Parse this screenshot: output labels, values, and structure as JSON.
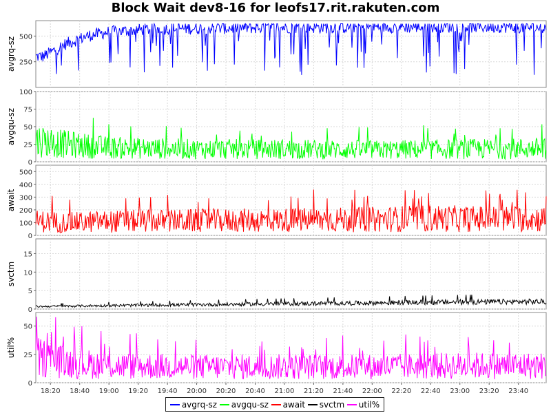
{
  "chart_data": {
    "type": "line",
    "title": "Block Wait dev8-16 for leofs17.rit.rakuten.com",
    "x_tick_labels": [
      "18:20",
      "18:40",
      "19:00",
      "19:20",
      "19:40",
      "20:00",
      "20:20",
      "20:40",
      "21:00",
      "21:20",
      "21:40",
      "22:00",
      "22:20",
      "22:40",
      "23:00",
      "23:20",
      "23:40"
    ],
    "x_range": [
      "18:10",
      "23:59"
    ],
    "grid": true,
    "legend_position": "bottom",
    "panels": [
      {
        "ylabel": "avgrq-sz",
        "series": "avgrq-sz",
        "color": "#0000ff",
        "ylim": [
          0,
          650
        ],
        "ticks": [
          250,
          500
        ],
        "samples": {
          "x": [
            "18:15",
            "18:30",
            "18:45",
            "19:00",
            "19:30",
            "20:00",
            "20:30",
            "21:00",
            "21:30",
            "22:00",
            "22:30",
            "23:00",
            "23:30",
            "23:59"
          ],
          "y": [
            300,
            420,
            500,
            540,
            570,
            575,
            580,
            585,
            585,
            590,
            590,
            590,
            590,
            580
          ]
        }
      },
      {
        "ylabel": "avgqu-sz",
        "series": "avgqu-sz",
        "color": "#00ff00",
        "ylim": [
          0,
          100
        ],
        "ticks": [
          0,
          25,
          50,
          75,
          100
        ],
        "samples": {
          "x": [
            "18:15",
            "18:30",
            "19:00",
            "20:00",
            "21:00",
            "22:00",
            "23:00",
            "23:59"
          ],
          "y": [
            30,
            25,
            20,
            18,
            18,
            17,
            18,
            19
          ]
        }
      },
      {
        "ylabel": "await",
        "series": "await",
        "color": "#ff0000",
        "ylim": [
          0,
          550
        ],
        "ticks": [
          0,
          100,
          200,
          300,
          400,
          500
        ],
        "samples": {
          "x": [
            "18:15",
            "18:30",
            "19:00",
            "20:00",
            "21:00",
            "22:00",
            "22:40",
            "23:00",
            "23:59"
          ],
          "y": [
            110,
            100,
            110,
            115,
            120,
            125,
            135,
            130,
            130
          ]
        }
      },
      {
        "ylabel": "svctm",
        "series": "svctm",
        "color": "#000000",
        "ylim": [
          0,
          19
        ],
        "ticks": [
          0,
          5,
          10,
          15
        ],
        "samples": {
          "x": [
            "18:15",
            "19:00",
            "20:00",
            "21:00",
            "22:00",
            "23:00",
            "23:59"
          ],
          "y": [
            0.6,
            0.8,
            1.0,
            1.2,
            1.4,
            1.6,
            1.7
          ]
        }
      },
      {
        "ylabel": "util%",
        "series": "util%",
        "color": "#ff00ff",
        "ylim": [
          0,
          62
        ],
        "ticks": [
          0,
          25,
          50
        ],
        "samples": {
          "x": [
            "18:15",
            "18:30",
            "19:00",
            "20:00",
            "21:00",
            "22:00",
            "23:00",
            "23:59"
          ],
          "y": [
            22,
            18,
            15,
            14,
            14,
            14,
            15,
            15
          ]
        }
      }
    ],
    "legend": [
      {
        "label": "avgrq-sz",
        "color": "#0000ff"
      },
      {
        "label": "avgqu-sz",
        "color": "#00ff00"
      },
      {
        "label": "await",
        "color": "#ff0000"
      },
      {
        "label": "svctm",
        "color": "#000000"
      },
      {
        "label": "util%",
        "color": "#ff00ff"
      }
    ]
  }
}
